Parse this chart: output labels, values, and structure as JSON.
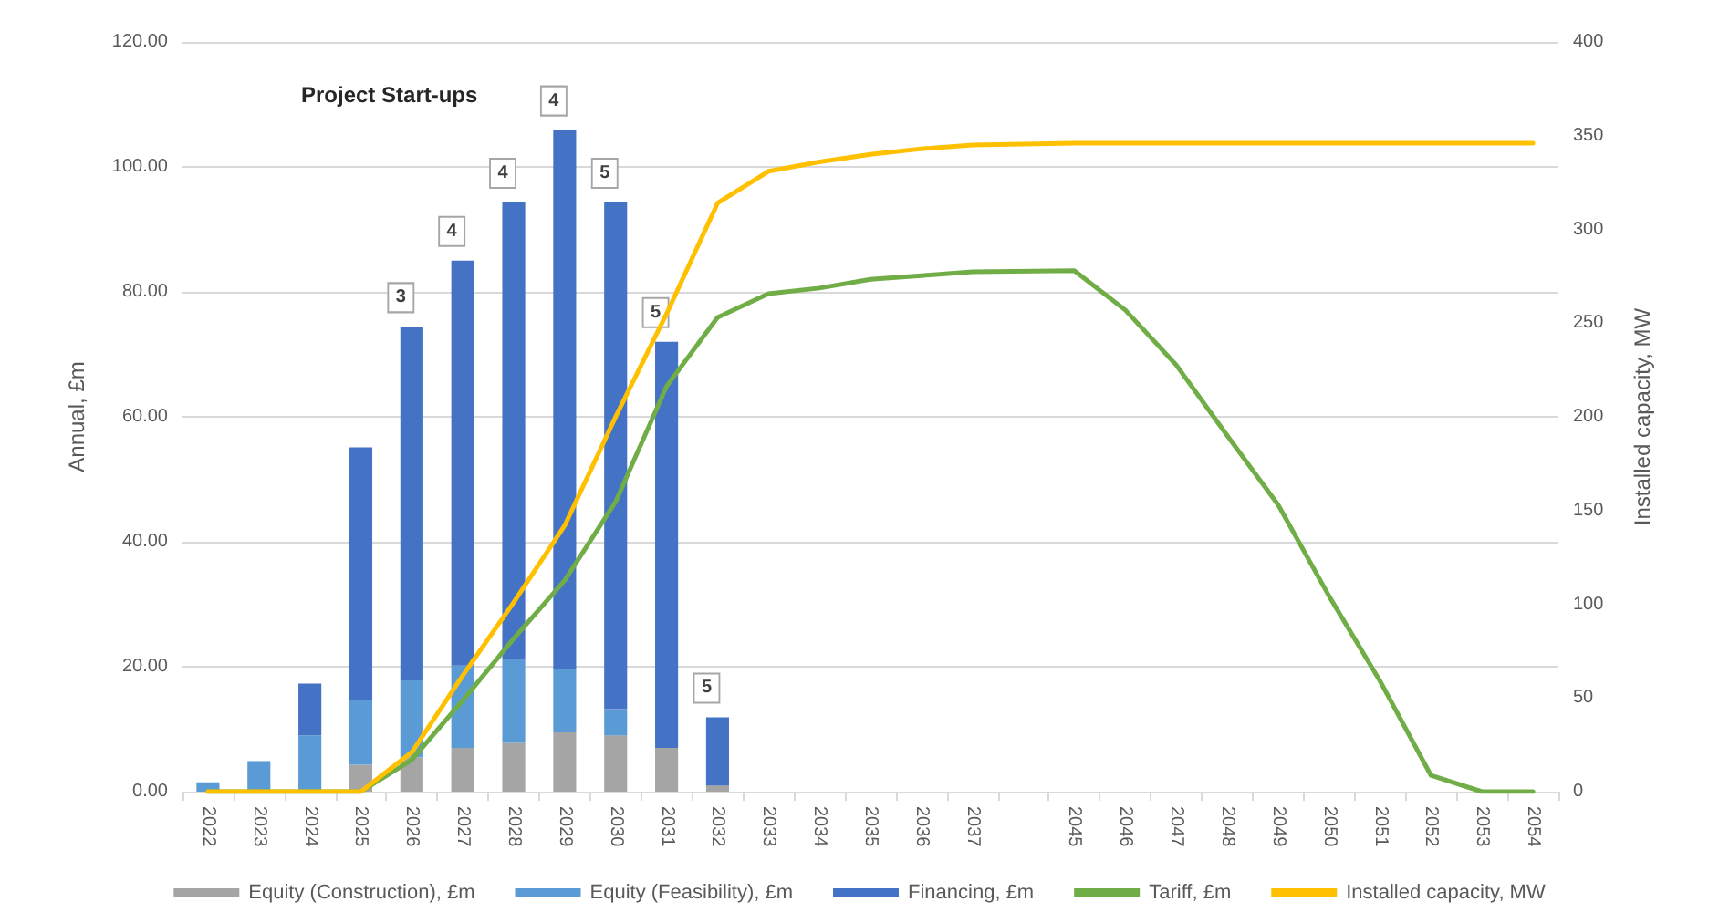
{
  "chart_data": {
    "type": "bar",
    "stacked": true,
    "categories": [
      "2022",
      "2023",
      "2024",
      "2025",
      "2026",
      "2027",
      "2028",
      "2029",
      "2030",
      "2031",
      "2032",
      "2033",
      "2034",
      "2035",
      "2036",
      "2037",
      null,
      "2045",
      "2046",
      "2047",
      "2048",
      "2049",
      "2050",
      "2051",
      "2052",
      "2053",
      "2054"
    ],
    "series": [
      {
        "name": "Equity (Construction), £m",
        "color": "#a5a5a5",
        "values": [
          0,
          0,
          null,
          4.3,
          5.5,
          7.0,
          7.8,
          9.5,
          9.0,
          7.0,
          1.0,
          0,
          0,
          0,
          0,
          0,
          null,
          0,
          0,
          0,
          0,
          0,
          0,
          0,
          0,
          0,
          0
        ]
      },
      {
        "name": "Equity (Feasibility), £m",
        "color": "#5b9bd5",
        "values": [
          1.5,
          4.9,
          9.0,
          10.3,
          12.3,
          13.2,
          13.4,
          10.2,
          4.2,
          0,
          0,
          0,
          0,
          0,
          0,
          0,
          null,
          0,
          0,
          0,
          0,
          0,
          0,
          0,
          0,
          0,
          0
        ]
      },
      {
        "name": "Financing, £m",
        "color": "#4472c4",
        "values": [
          0,
          0,
          8.3,
          40.5,
          56.6,
          64.8,
          73.1,
          86.2,
          81.1,
          65.0,
          10.9,
          0,
          0,
          0,
          0,
          0,
          null,
          0,
          0,
          0,
          0,
          0,
          0,
          0,
          0,
          0,
          0
        ]
      },
      {
        "name": "Tariff, £m",
        "type": "line",
        "color": "#70ad47",
        "values": [
          0,
          0,
          0,
          0,
          5.1,
          14.6,
          24.5,
          33.8,
          46.4,
          64.9,
          75.9,
          79.7,
          80.6,
          82.0,
          82.6,
          83.2,
          null,
          83.4,
          77.1,
          68.3,
          57,
          45.9,
          31.3,
          17.7,
          2.6,
          0,
          0
        ]
      },
      {
        "name": "Installed capacity, MW",
        "type": "line",
        "axis": "y2",
        "color": "#ffc000",
        "values": [
          0,
          0,
          0,
          0,
          21,
          62,
          101,
          142,
          200,
          255,
          314,
          331,
          336,
          340,
          343,
          345,
          null,
          346,
          346,
          346,
          346,
          346,
          346,
          346,
          346,
          346,
          346
        ]
      }
    ],
    "ylabel": "Annual, £m",
    "y2label": "Installed capacity, MW",
    "ylim": [
      0,
      120
    ],
    "yticks": [
      {
        "value": 0,
        "label": "0.00"
      },
      {
        "value": 20,
        "label": "20.00"
      },
      {
        "value": 40,
        "label": "40.00"
      },
      {
        "value": 60,
        "label": "60.00"
      },
      {
        "value": 80,
        "label": "80.00"
      },
      {
        "value": 100,
        "label": "100.00"
      },
      {
        "value": 120,
        "label": "120.00"
      }
    ],
    "y2lim": [
      0,
      400
    ],
    "y2ticks": [
      0,
      50,
      100,
      150,
      200,
      250,
      300,
      350,
      400
    ],
    "annotations": [
      "Project Start-ups",
      {
        "text": "3",
        "x": "2026",
        "y": 74.4
      },
      {
        "text": "4",
        "x": "2027",
        "y": 85.0
      },
      {
        "text": "4",
        "x": "2028",
        "y": 94.3
      },
      {
        "text": "4",
        "x": "2029",
        "y": 105.9
      },
      {
        "text": "5",
        "x": "2030",
        "y": 94.3
      },
      {
        "text": "5",
        "x": "2031",
        "y": 72.0
      },
      {
        "text": "5",
        "x": "2032",
        "y": 11.9
      }
    ],
    "grid": "y",
    "legend": "bottom",
    "marker": "none",
    "line_style": "solid"
  }
}
